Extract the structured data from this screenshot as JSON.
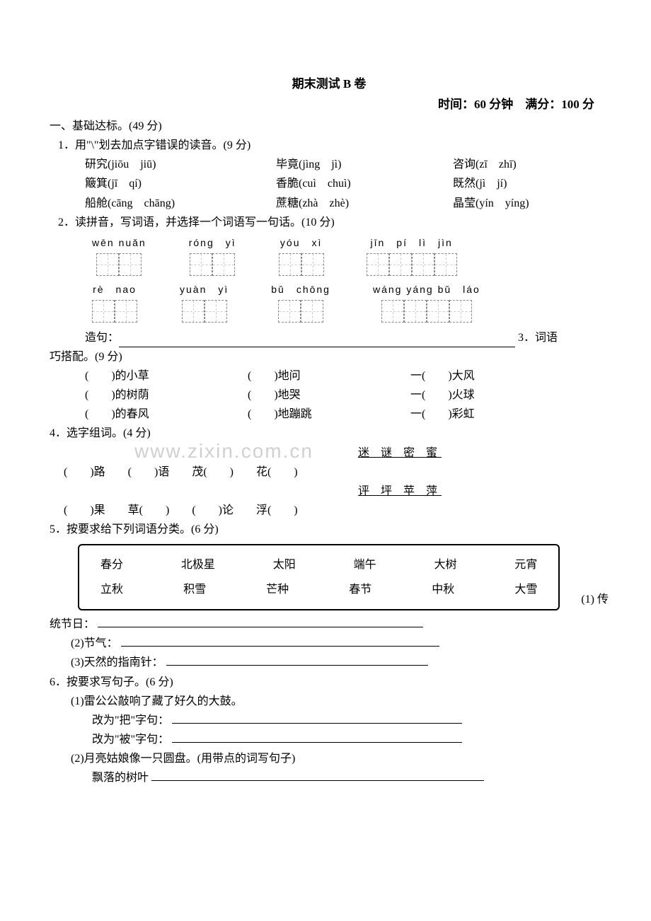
{
  "title": "期末测试 B 卷",
  "timeInfo": "时间：60 分钟　满分：100 分",
  "watermark": "www.zixin.com.cn",
  "sec1": {
    "heading": "一、基础达标。(49 分)",
    "q1": {
      "prompt": "1．用\"\\\"划去加点字错误的读音。(9 分)",
      "items": [
        [
          "研究(jiōu　jiū)",
          "毕竟(jìng　jì)",
          "咨询(zī　zhī)"
        ],
        [
          "簸箕(jī　qí)",
          "香脆(cuì　chuì)",
          "既然(jì　jí)"
        ],
        [
          "船舱(cāng　chāng)",
          "蔗糖(zhà　zhè)",
          "晶莹(yín　yíng)"
        ]
      ]
    },
    "q2": {
      "prompt": "2．读拼音，写词语，并选择一个词语写一句话。(10 分)",
      "row1": [
        {
          "p": "wēn nuǎn",
          "n": 2
        },
        {
          "p": "róng　yì",
          "n": 2
        },
        {
          "p": "yóu　xì",
          "n": 2
        },
        {
          "p": "jīn　pí　lì　jìn",
          "n": 4
        }
      ],
      "row2": [
        {
          "p": "rè　nao",
          "n": 2
        },
        {
          "p": "yuàn　yì",
          "n": 2
        },
        {
          "p": "bǔ　chōng",
          "n": 2
        },
        {
          "p": "wáng yáng bǔ　láo",
          "n": 4
        }
      ],
      "sentenceLabel": "造句：",
      "trailing": "3．词语"
    },
    "q3": {
      "prompt": "巧搭配。(9 分)",
      "rows": [
        [
          "(　　)的小草",
          "(　　)地问",
          "一(　　)大风"
        ],
        [
          "(　　)的树荫",
          "(　　)地哭",
          "一(　　)火球"
        ],
        [
          "(　　)的春风",
          "(　　)地蹦跳",
          "一(　　)彩虹"
        ]
      ]
    },
    "q4": {
      "prompt": "4．选字组词。(4 分)",
      "group1Title": "迷 谜 密 蜜",
      "group1": "(　　)路　　(　　)语　　茂(　　)　　花(　　)",
      "group2Title": "评 坪 苹 萍",
      "group2": "(　　)果　　草(　　)　　(　　)论　　浮(　　)"
    },
    "q5": {
      "prompt": "5．按要求给下列词语分类。(6 分)",
      "bank": [
        [
          "春分",
          "北极星",
          "太阳",
          "端午",
          "大树",
          "元宵"
        ],
        [
          "立秋",
          "积雪",
          "芒种",
          "春节",
          "中秋",
          "大雪"
        ]
      ],
      "trailing": "(1) 传",
      "a1": "统节日：",
      "a2": "(2)节气：",
      "a3": "(3)天然的指南针："
    },
    "q6": {
      "prompt": "6．按要求写句子。(6 分)",
      "s1": "(1)雷公公敲响了藏了好久的大鼓。",
      "s1a": "改为\"把\"字句：",
      "s1b": "改为\"被\"字句：",
      "s2": "(2)月亮姑娘像一只圆盘。(用带点的词写句子)",
      "s2a": "飘落的树叶"
    }
  }
}
